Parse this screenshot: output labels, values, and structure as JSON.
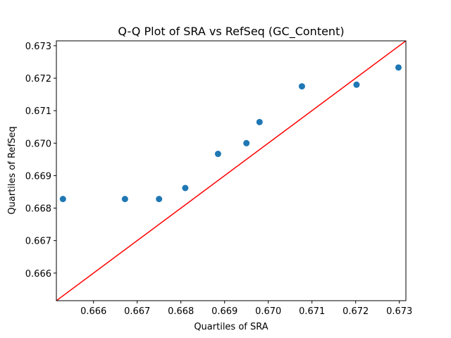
{
  "chart_data": {
    "type": "scatter",
    "title": "Q-Q Plot of SRA vs RefSeq (GC_Content)",
    "xlabel": "Quartiles of SRA",
    "ylabel": "Quartiles of RefSeq",
    "xlim": [
      0.66515,
      0.67315
    ],
    "ylim": [
      0.66515,
      0.67315
    ],
    "xticks": [
      0.666,
      0.667,
      0.668,
      0.669,
      0.67,
      0.671,
      0.672,
      0.673
    ],
    "yticks": [
      0.666,
      0.667,
      0.668,
      0.669,
      0.67,
      0.671,
      0.672,
      0.673
    ],
    "xtick_labels": [
      "0.666",
      "0.667",
      "0.668",
      "0.669",
      "0.670",
      "0.671",
      "0.672",
      "0.673"
    ],
    "ytick_labels": [
      "0.666",
      "0.667",
      "0.668",
      "0.669",
      "0.670",
      "0.671",
      "0.672",
      "0.673"
    ],
    "points": [
      {
        "x": 0.6653,
        "y": 0.66828
      },
      {
        "x": 0.66672,
        "y": 0.66828
      },
      {
        "x": 0.6675,
        "y": 0.66828
      },
      {
        "x": 0.6681,
        "y": 0.66862
      },
      {
        "x": 0.66885,
        "y": 0.66967
      },
      {
        "x": 0.6695,
        "y": 0.67
      },
      {
        "x": 0.6698,
        "y": 0.67065
      },
      {
        "x": 0.67077,
        "y": 0.67175
      },
      {
        "x": 0.67202,
        "y": 0.6718
      },
      {
        "x": 0.67298,
        "y": 0.67233
      }
    ],
    "reference_line": {
      "x": [
        0.66515,
        0.67315
      ],
      "y": [
        0.66515,
        0.67315
      ]
    },
    "colors": {
      "points": "#1f77b4",
      "reference_line": "#ff0000",
      "axes": "#000000"
    },
    "grid": false
  }
}
